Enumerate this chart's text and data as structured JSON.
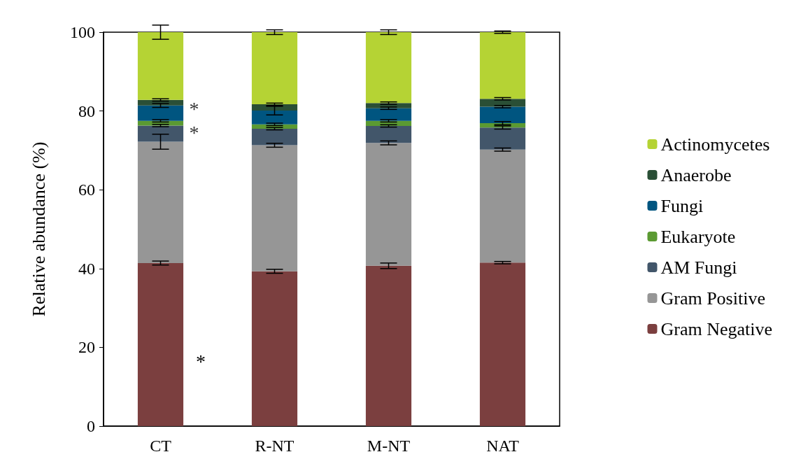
{
  "chart_data": {
    "type": "bar",
    "stacked": true,
    "ylabel": "Relative abundance (%)",
    "categories": [
      "CT",
      "R-NT",
      "M-NT",
      "NAT"
    ],
    "series": [
      {
        "name": "Gram Negative",
        "color": "#7b3f3f",
        "values": [
          41.4,
          39.3,
          40.7,
          41.5
        ],
        "errors": [
          0.5,
          0.5,
          0.7,
          0.3
        ]
      },
      {
        "name": "Gram Positive",
        "color": "#969696",
        "values": [
          30.8,
          32.0,
          31.2,
          28.7
        ],
        "errors": [
          1.9,
          0.5,
          0.5,
          0.4
        ]
      },
      {
        "name": "AM Fungi",
        "color": "#42566a",
        "values": [
          4.1,
          4.2,
          4.3,
          5.6
        ],
        "errors": [
          0.3,
          0.3,
          0.3,
          0.4
        ]
      },
      {
        "name": "Eukaryote",
        "color": "#5b9a32",
        "values": [
          1.2,
          1.1,
          1.3,
          1.1
        ],
        "errors": [
          0.3,
          0.3,
          0.3,
          0.4
        ]
      },
      {
        "name": "Fungi",
        "color": "#005580",
        "values": [
          3.9,
          3.5,
          3.2,
          4.2
        ],
        "errors": [
          0.5,
          1.1,
          0.3,
          0.3
        ]
      },
      {
        "name": "Anaerobe",
        "color": "#2a4f36",
        "values": [
          1.4,
          1.6,
          1.3,
          2.0
        ],
        "errors": [
          0.3,
          0.3,
          0.3,
          0.3
        ]
      },
      {
        "name": "Actinomycetes",
        "color": "#b5d334",
        "values": [
          17.2,
          18.3,
          18.0,
          16.9
        ],
        "errors": [
          1.8,
          0.6,
          0.6,
          0.3
        ]
      }
    ],
    "ylim": [
      0,
      100
    ],
    "yticks": [
      0,
      20,
      40,
      60,
      80,
      100
    ],
    "grid": false,
    "legend": "right",
    "annotations": [
      {
        "text": "*",
        "x": "CT",
        "y": 82
      },
      {
        "text": "*",
        "x": "CT",
        "y": 76
      },
      "*"
    ]
  }
}
